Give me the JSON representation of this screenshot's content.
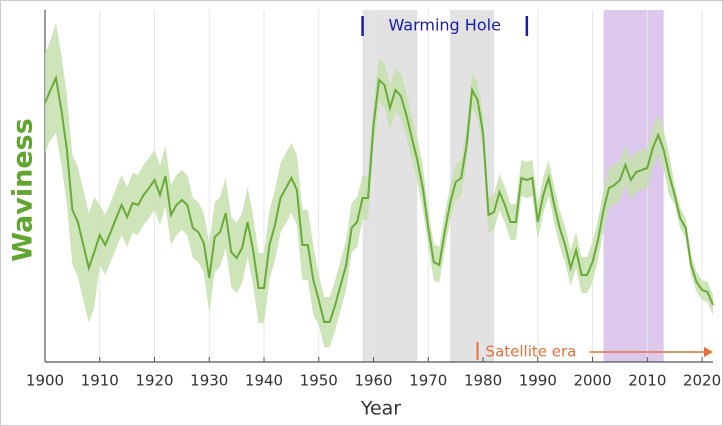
{
  "chart_data": {
    "type": "line",
    "y_label": "Waviness",
    "x_label": "Year",
    "x": [
      1900,
      1901,
      1902,
      1903,
      1904,
      1905,
      1906,
      1907,
      1908,
      1909,
      1910,
      1911,
      1912,
      1913,
      1914,
      1915,
      1916,
      1917,
      1918,
      1919,
      1920,
      1921,
      1922,
      1923,
      1924,
      1925,
      1926,
      1927,
      1928,
      1929,
      1930,
      1931,
      1932,
      1933,
      1934,
      1935,
      1936,
      1937,
      1938,
      1939,
      1940,
      1941,
      1942,
      1943,
      1944,
      1945,
      1946,
      1947,
      1948,
      1949,
      1950,
      1951,
      1952,
      1953,
      1954,
      1955,
      1956,
      1957,
      1958,
      1959,
      1960,
      1961,
      1962,
      1963,
      1964,
      1965,
      1966,
      1967,
      1968,
      1969,
      1970,
      1971,
      1972,
      1973,
      1974,
      1975,
      1976,
      1977,
      1978,
      1979,
      1980,
      1981,
      1982,
      1983,
      1984,
      1985,
      1986,
      1987,
      1988,
      1989,
      1990,
      1991,
      1992,
      1993,
      1994,
      1995,
      1996,
      1997,
      1998,
      1999,
      2000,
      2001,
      2002,
      2003,
      2004,
      2005,
      2006,
      2007,
      2008,
      2009,
      2010,
      2011,
      2012,
      2013,
      2014,
      2015,
      2016,
      2017,
      2018,
      2019,
      2020,
      2021,
      2022
    ],
    "series": [
      {
        "color": "#6aaa3a",
        "band_color": "#c6e0ae",
        "values": [
          259,
          272,
          284,
          252,
          212,
          152,
          140,
          117,
          94,
          110,
          127,
          117,
          130,
          144,
          157,
          145,
          159,
          157,
          167,
          174,
          182,
          167,
          186,
          147,
          157,
          162,
          157,
          134,
          130,
          119,
          84,
          125,
          130,
          149,
          110,
          104,
          114,
          140,
          112,
          74,
          74,
          117,
          137,
          164,
          174,
          184,
          172,
          117,
          117,
          82,
          62,
          40,
          40,
          57,
          77,
          97,
          134,
          140,
          164,
          164,
          237,
          282,
          277,
          254,
          272,
          266,
          247,
          224,
          202,
          174,
          134,
          100,
          97,
          130,
          159,
          180,
          184,
          217,
          272,
          262,
          229,
          147,
          150,
          170,
          157,
          140,
          140,
          184,
          182,
          184,
          140,
          167,
          184,
          157,
          134,
          117,
          94,
          112,
          87,
          87,
          100,
          122,
          152,
          174,
          177,
          182,
          197,
          182,
          190,
          192,
          194,
          214,
          227,
          212,
          187,
          167,
          144,
          134,
          97,
          80,
          72,
          70,
          57
        ],
        "error": [
          50,
          50,
          55,
          55,
          55,
          55,
          55,
          55,
          55,
          55,
          30,
          30,
          30,
          30,
          30,
          30,
          30,
          30,
          30,
          30,
          30,
          30,
          30,
          30,
          30,
          30,
          30,
          30,
          30,
          30,
          35,
          35,
          35,
          35,
          35,
          35,
          35,
          35,
          35,
          35,
          35,
          35,
          35,
          35,
          35,
          35,
          35,
          35,
          35,
          35,
          25,
          25,
          25,
          25,
          25,
          25,
          25,
          25,
          22,
          22,
          22,
          22,
          22,
          22,
          22,
          22,
          22,
          22,
          22,
          22,
          18,
          18,
          18,
          18,
          18,
          18,
          18,
          18,
          18,
          18,
          18,
          18,
          18,
          18,
          18,
          18,
          18,
          18,
          18,
          18,
          18,
          18,
          18,
          18,
          18,
          18,
          18,
          18,
          18,
          18,
          20,
          20,
          20,
          20,
          20,
          20,
          20,
          20,
          20,
          20,
          20,
          20,
          20,
          20,
          20,
          10,
          10,
          10,
          10,
          10,
          10,
          10,
          10
        ]
      }
    ],
    "xlim": [
      1900,
      2022
    ],
    "ylim": [
      0,
      352
    ],
    "xticks": [
      1900,
      1910,
      1920,
      1930,
      1940,
      1950,
      1960,
      1970,
      1980,
      1990,
      2000,
      2010,
      2020
    ],
    "grid": true,
    "spans": [
      {
        "start": 1958,
        "end": 1968,
        "color": "#e2e2e2"
      },
      {
        "start": 1974,
        "end": 1982,
        "color": "#e2e2e2"
      },
      {
        "start": 2002,
        "end": 2013,
        "color": "#dbc8ec"
      }
    ],
    "annotations": [
      {
        "text": "Warming Hole",
        "start": 1958,
        "end": 1988,
        "color": "#1c1caa",
        "style": "bracket"
      },
      {
        "text": "Satellite era",
        "start": 1979,
        "end": 2022,
        "color": "#e8703a",
        "style": "arrow"
      }
    ]
  }
}
